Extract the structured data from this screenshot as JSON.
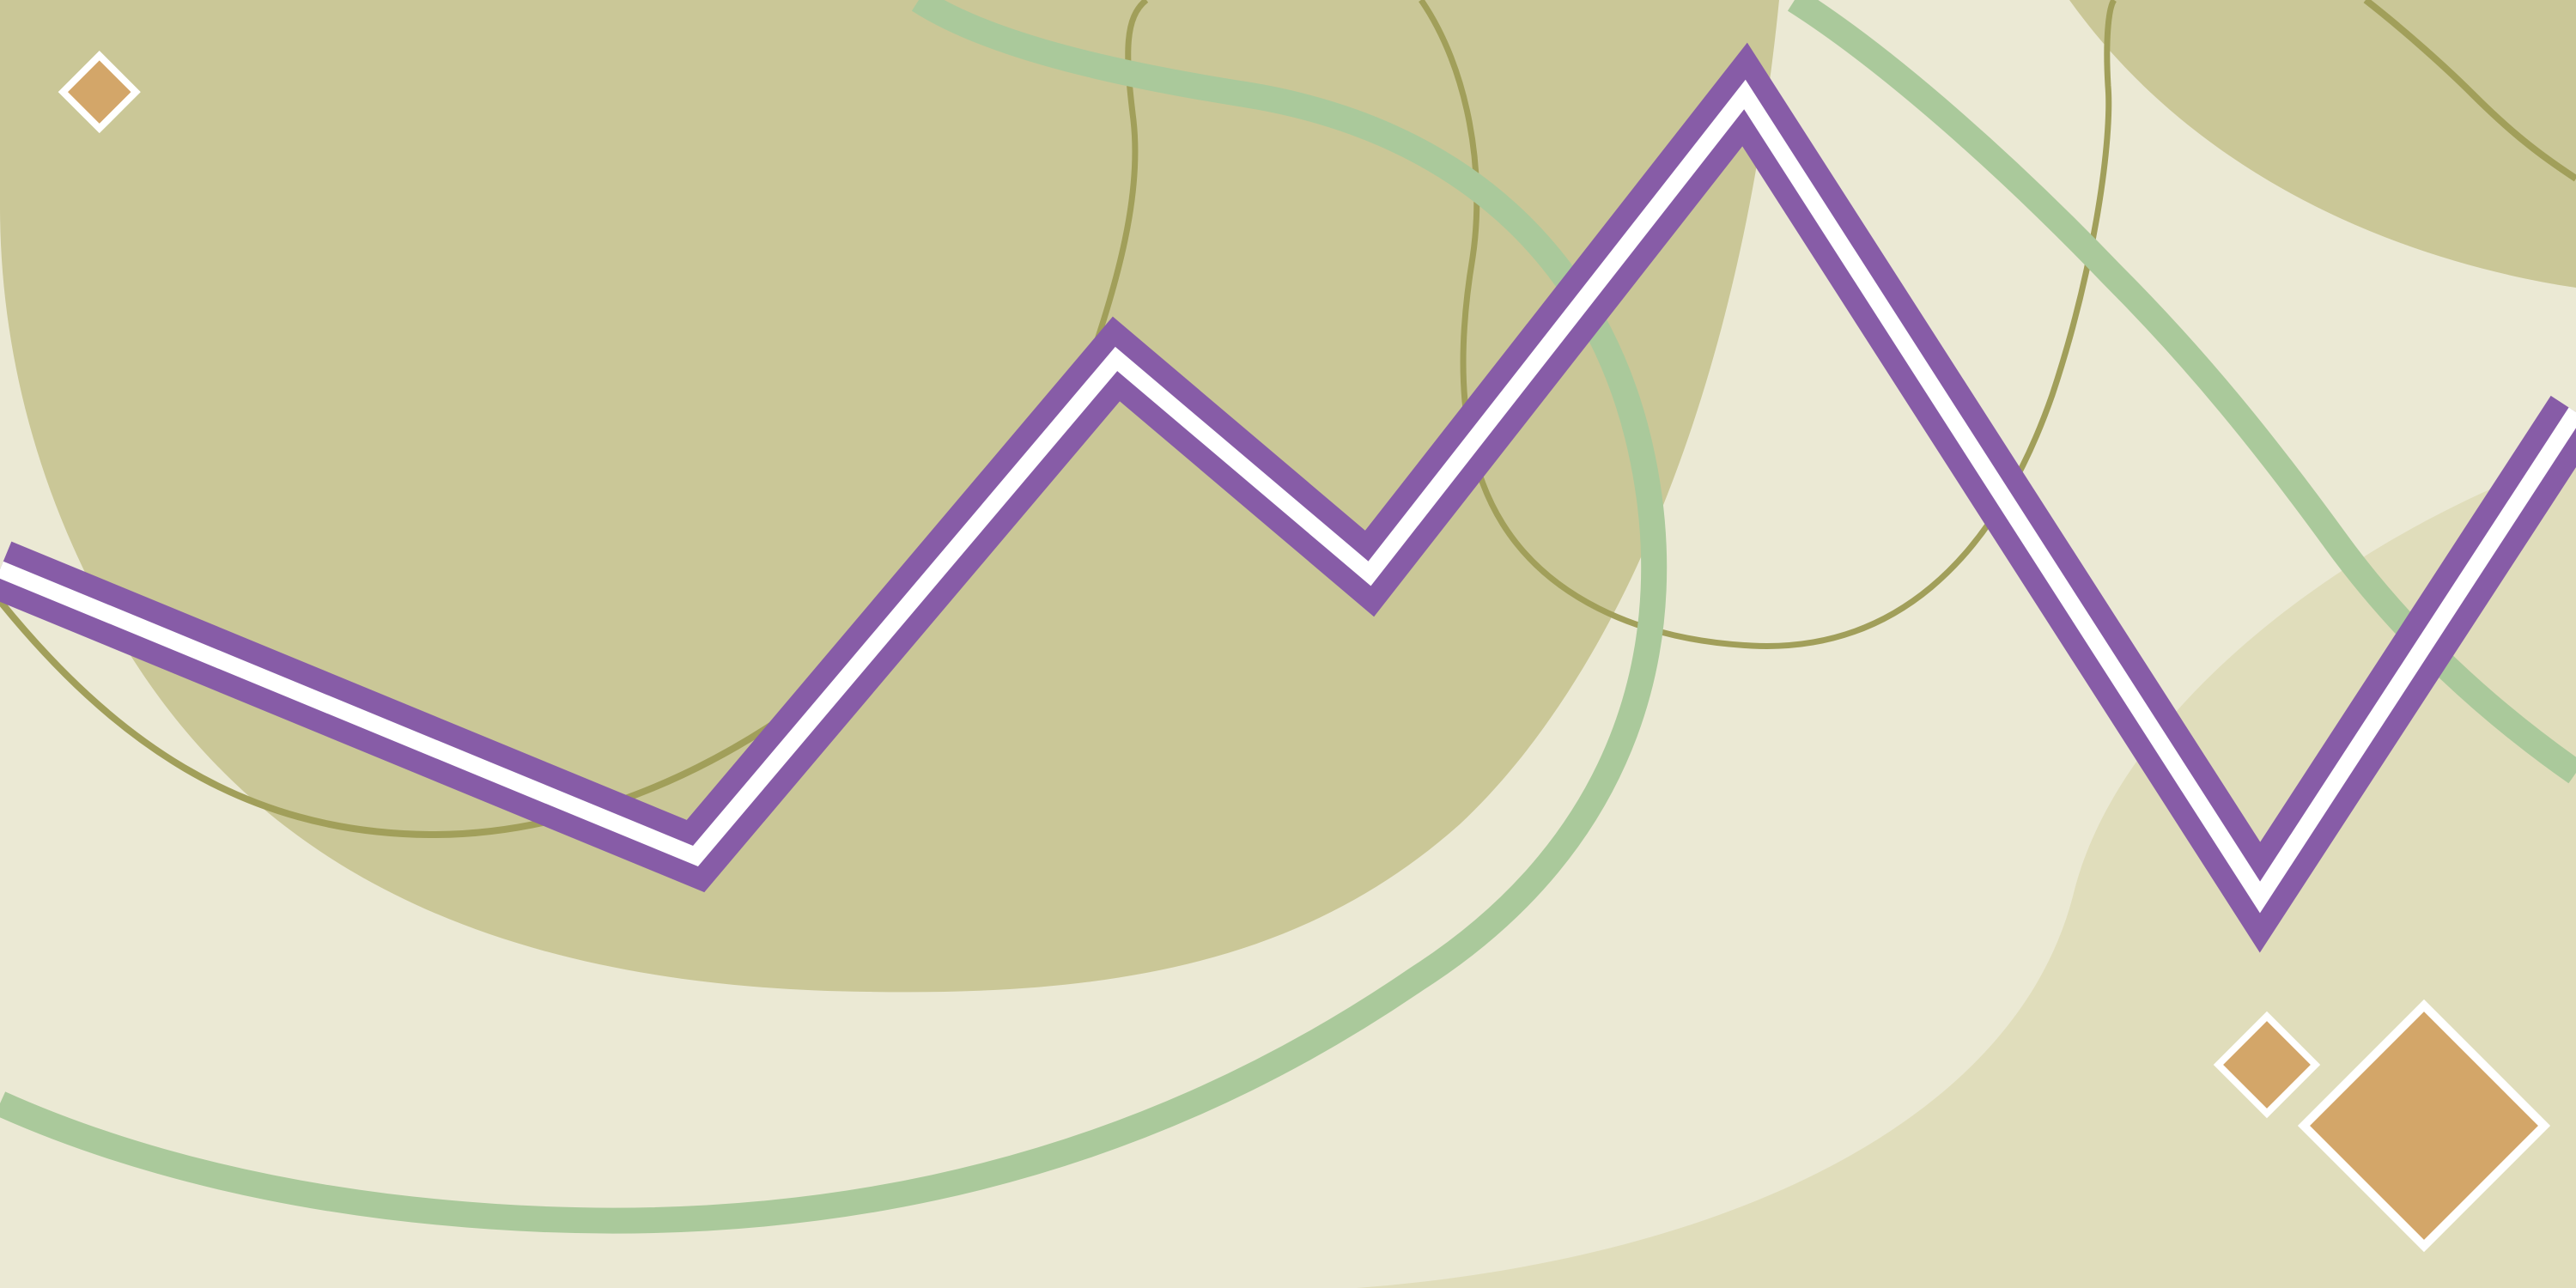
{
  "palette": {
    "background": "#ebe9d4",
    "blob_dark": "#cac797",
    "blob_light": "#e0ddbb",
    "thin_line": "#a19f5a",
    "green_band": "#aac99b",
    "zigzag_outer": "#875ca7",
    "zigzag_inner": "#ffffff",
    "diamond_fill": "#d3a669",
    "diamond_stroke": "#ffffff"
  },
  "elements": {
    "blobs": [
      "large-blob-left",
      "corner-blob-top-right",
      "blob-bottom-right"
    ],
    "curves": [
      "thin-curve-left",
      "thin-loop-center",
      "thin-curve-top-right",
      "green-band-loop",
      "green-band-right",
      "green-band-bottom"
    ],
    "zigzag": "purple-white-zigzag",
    "diamonds": [
      "diamond-small-top-left",
      "diamond-small-bottom-right",
      "diamond-large-bottom-right"
    ]
  }
}
